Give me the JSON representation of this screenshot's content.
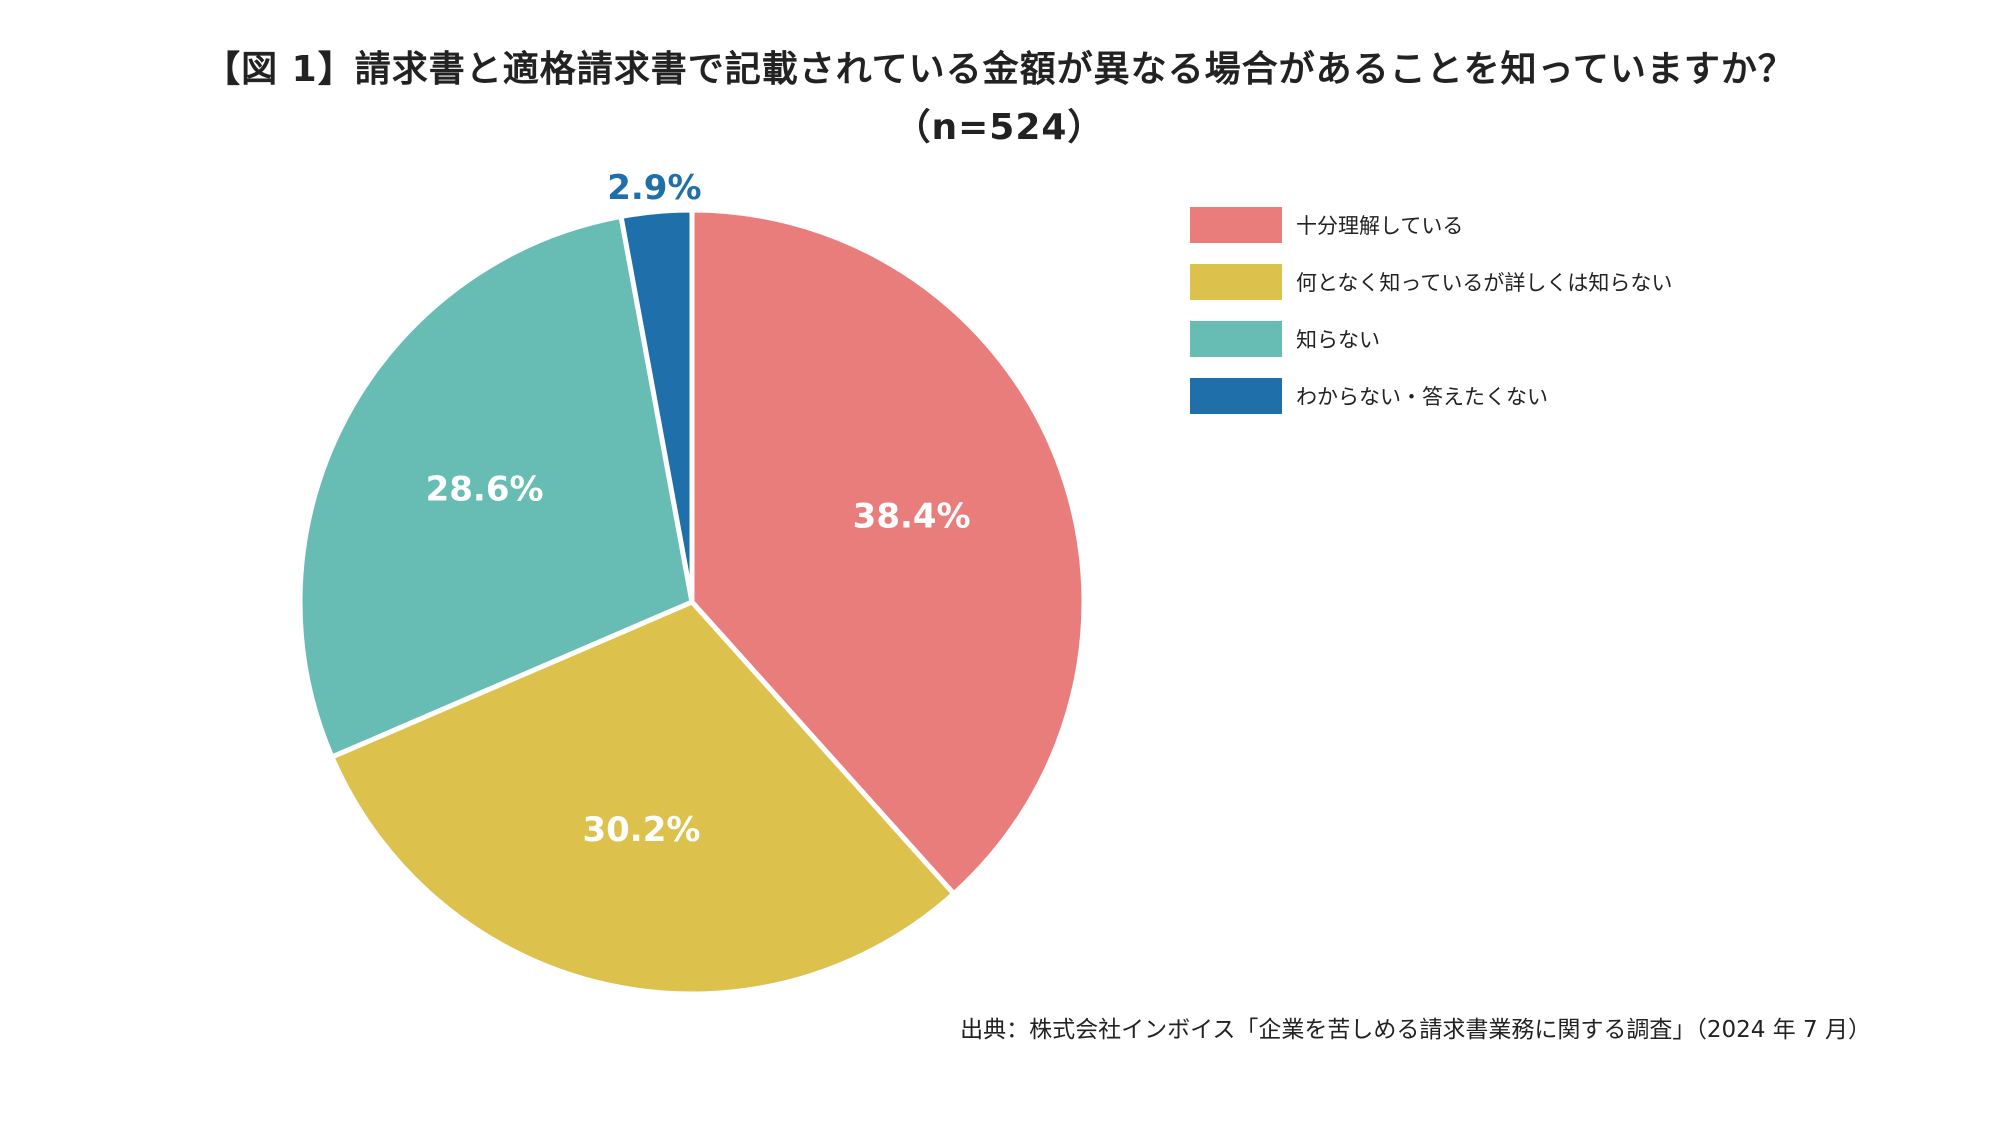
{
  "title_line1": "【図 1】請求書と適格請求書で記載されている金額が異なる場合があることを知っていますか？",
  "title_line2": "（n=524）",
  "chart_data": {
    "type": "pie",
    "slices": [
      {
        "label": "十分理解している",
        "value": 38.4,
        "value_label": "38.4%",
        "color": "#E97D7C"
      },
      {
        "label": "何となく知っているが詳しくは知らない",
        "value": 30.2,
        "value_label": "30.2%",
        "color": "#DCC14C"
      },
      {
        "label": "知らない",
        "value": 28.6,
        "value_label": "28.6%",
        "color": "#67BCB4"
      },
      {
        "label": "わからない・答えたくない",
        "value": 2.9,
        "value_label": "2.9%",
        "color": "#1E6FAA"
      }
    ],
    "legend_placement": "right",
    "start_angle": "12 o'clock",
    "direction": "clockwise"
  },
  "source": "出典：株式会社インボイス「企業を苦しめる請求書業務に関する調査」（2024 年 7 月）"
}
